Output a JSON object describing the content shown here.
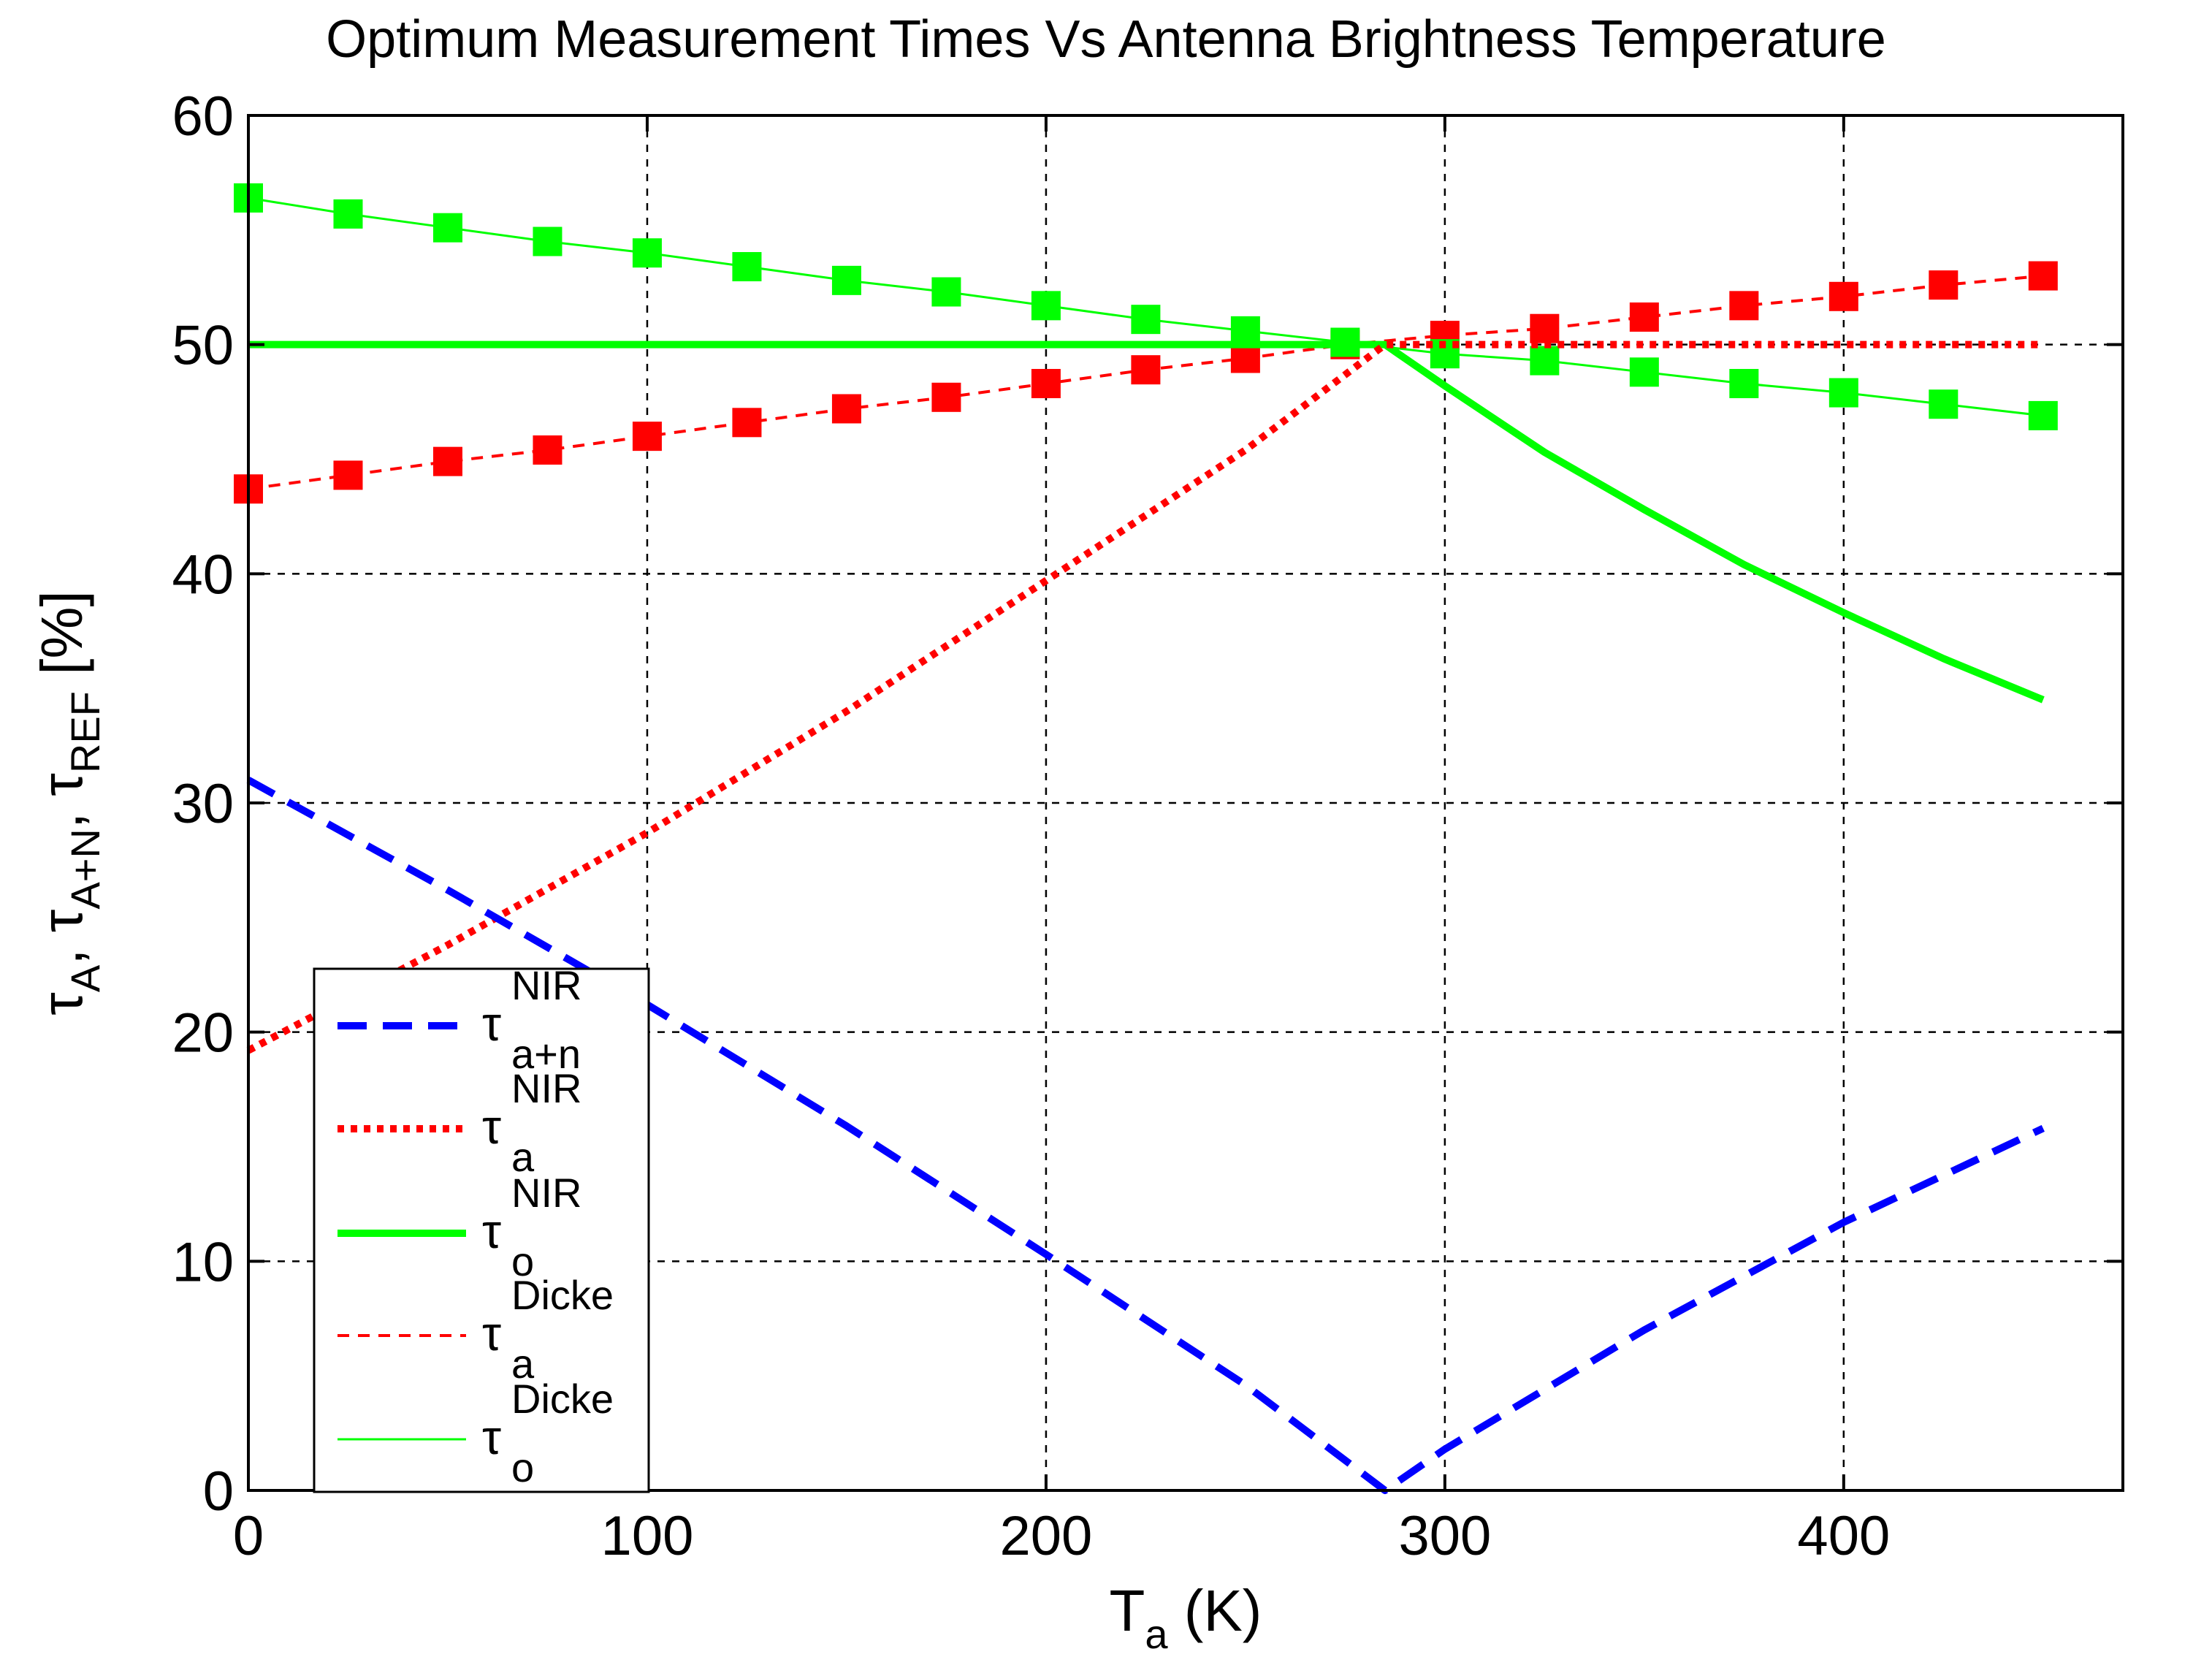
{
  "chart_data": {
    "type": "line",
    "title": "Optimum Measurement Times Vs Antenna Brightness Temperature",
    "xlabel": {
      "base": "T",
      "sub": "a",
      "rest": " (K)"
    },
    "ylabel": [
      {
        "base": "τ",
        "sub": "A"
      },
      {
        "sep": ", "
      },
      {
        "base": "τ",
        "sub": "A+N"
      },
      {
        "sep": ", "
      },
      {
        "base": "τ",
        "sub": "REF"
      },
      {
        "sep": "  [%]"
      }
    ],
    "xlim": [
      0,
      470
    ],
    "ylim": [
      0,
      60
    ],
    "xticks": [
      0,
      100,
      200,
      300,
      400
    ],
    "yticks": [
      0,
      10,
      20,
      30,
      40,
      50,
      60
    ],
    "xtick_labels": [
      "0",
      "100",
      "200",
      "300",
      "400"
    ],
    "ytick_labels": [
      "0",
      "10",
      "20",
      "30",
      "40",
      "50",
      "60"
    ],
    "grid": true,
    "legend_position": "bottom-left",
    "series": [
      {
        "name": "tau_a+n NIR",
        "legend_base": "τ",
        "legend_sup": "NIR",
        "legend_sub": "a+n",
        "color": "#0000ff",
        "style": "dashed-thick",
        "x": [
          0,
          50,
          100,
          150,
          200,
          250,
          285,
          300,
          350,
          400,
          450
        ],
        "y": [
          31,
          26.2,
          21.2,
          15.9,
          10.3,
          4.6,
          0,
          1.8,
          7.0,
          11.7,
          15.8
        ]
      },
      {
        "name": "tau_a NIR",
        "legend_base": "τ",
        "legend_sup": "NIR",
        "legend_sub": "a",
        "color": "#ff0000",
        "style": "dotted-thick",
        "x": [
          0,
          50,
          100,
          150,
          200,
          250,
          285,
          300,
          350,
          400,
          450
        ],
        "y": [
          19.2,
          23.8,
          28.7,
          34.0,
          39.7,
          45.4,
          50,
          50,
          50,
          50,
          50
        ]
      },
      {
        "name": "tau_o NIR",
        "legend_base": "τ",
        "legend_sup": "NIR",
        "legend_sub": "o",
        "color": "#00ff00",
        "style": "solid-thick",
        "x": [
          0,
          100,
          200,
          285,
          300,
          325,
          350,
          375,
          400,
          425,
          450
        ],
        "y": [
          50,
          50,
          50,
          50,
          48.2,
          45.3,
          42.8,
          40.4,
          38.3,
          36.3,
          34.5
        ]
      },
      {
        "name": "tau_a Dicke",
        "legend_base": "τ",
        "legend_sup": "Dicke",
        "legend_sub": "a",
        "color": "#ff0000",
        "style": "dashed-thin-markers",
        "x": [
          0,
          25,
          50,
          75,
          100,
          125,
          150,
          175,
          200,
          225,
          250,
          275,
          300,
          325,
          350,
          375,
          400,
          425,
          450
        ],
        "y": [
          43.7,
          44.3,
          44.9,
          45.4,
          46.0,
          46.6,
          47.2,
          47.7,
          48.3,
          48.9,
          49.4,
          50.0,
          50.4,
          50.7,
          51.2,
          51.7,
          52.1,
          52.6,
          53.0
        ]
      },
      {
        "name": "tau_o Dicke",
        "legend_base": "τ",
        "legend_sup": "Dicke",
        "legend_sub": "o",
        "color": "#00ff00",
        "style": "solid-thin-markers",
        "x": [
          0,
          25,
          50,
          75,
          100,
          125,
          150,
          175,
          200,
          225,
          250,
          275,
          300,
          325,
          350,
          375,
          400,
          425,
          450
        ],
        "y": [
          56.4,
          55.7,
          55.1,
          54.5,
          54.0,
          53.4,
          52.8,
          52.3,
          51.7,
          51.1,
          50.6,
          50.1,
          49.6,
          49.3,
          48.8,
          48.3,
          47.9,
          47.4,
          46.9
        ]
      }
    ]
  }
}
